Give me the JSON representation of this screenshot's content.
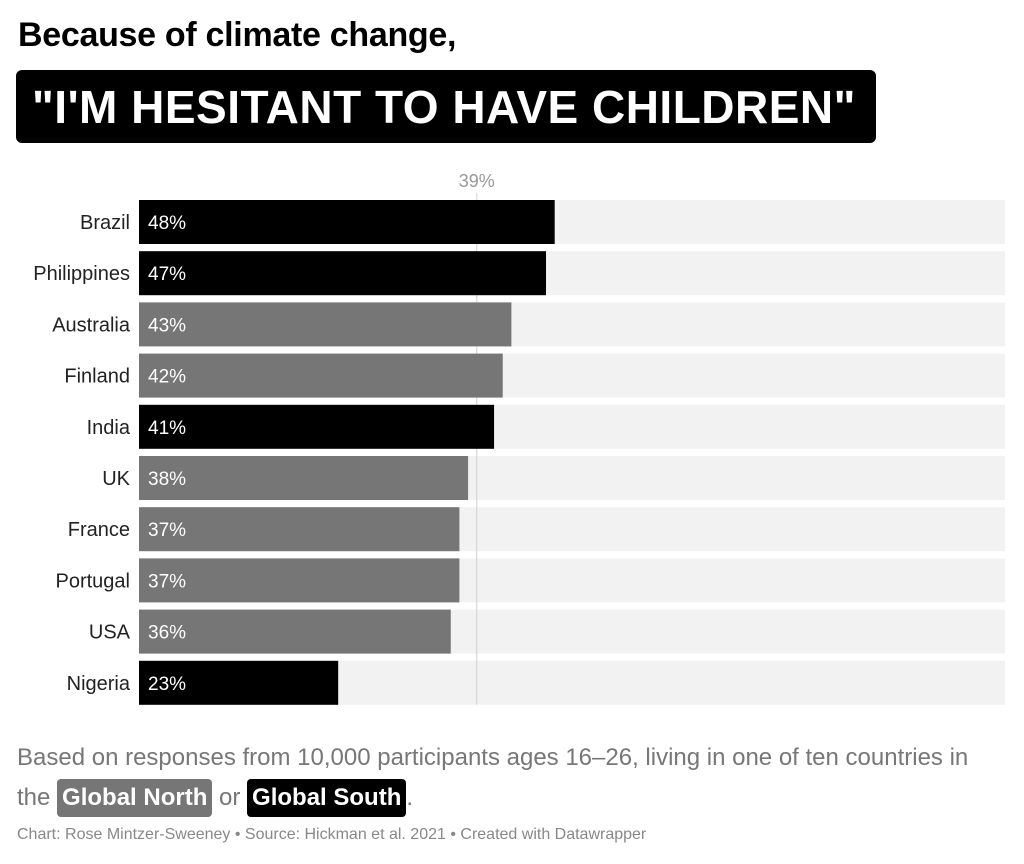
{
  "header": {
    "subtitle": "Because of climate change,",
    "title": "\"I'M HESITANT TO HAVE CHILDREN\""
  },
  "chart_data": {
    "type": "bar",
    "orientation": "horizontal",
    "categories": [
      "Brazil",
      "Philippines",
      "Australia",
      "Finland",
      "India",
      "UK",
      "France",
      "Portugal",
      "USA",
      "Nigeria"
    ],
    "values": [
      48,
      47,
      43,
      42,
      41,
      38,
      37,
      37,
      36,
      23
    ],
    "value_labels": [
      "48%",
      "47%",
      "43%",
      "42%",
      "41%",
      "38%",
      "37%",
      "37%",
      "36%",
      "23%"
    ],
    "groups": [
      "Global South",
      "Global South",
      "Global North",
      "Global North",
      "Global South",
      "Global North",
      "Global North",
      "Global North",
      "Global North",
      "Global South"
    ],
    "group_colors": {
      "Global North": "#767676",
      "Global South": "#000000"
    },
    "background_bar_color": "#f2f2f2",
    "reference_line": {
      "value": 39,
      "label": "39%"
    },
    "xlim": [
      0,
      100
    ],
    "grid": false
  },
  "note": {
    "text_before": "Based on responses from 10,000 participants ages 16–26, living in one of ten countries in the ",
    "north_label": "Global North",
    "middle": " or ",
    "south_label": "Global South",
    "end": "."
  },
  "footer": "Chart: Rose Mintzer-Sweeney • Source: Hickman et al. 2021 • Created with Datawrapper"
}
